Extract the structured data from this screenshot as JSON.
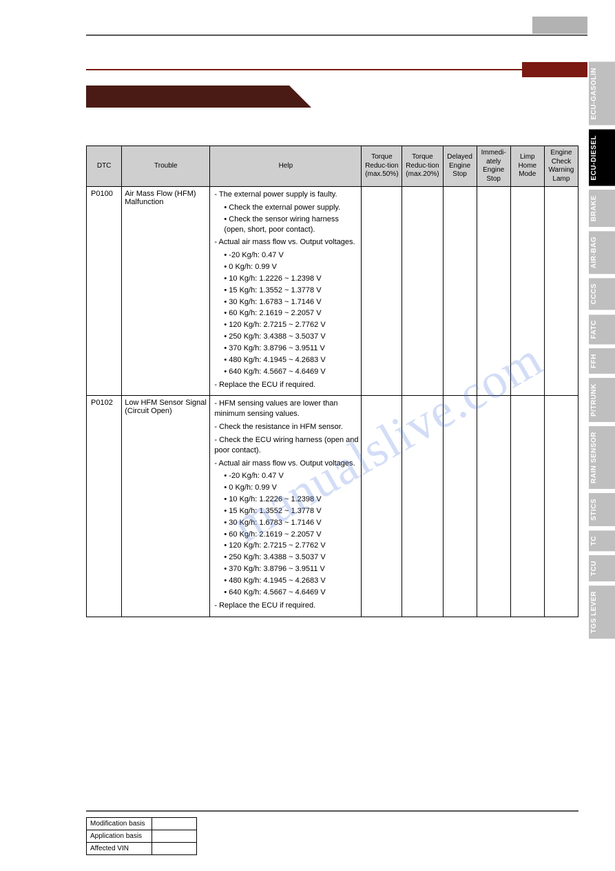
{
  "side_tabs": [
    {
      "label": "ECU-GASOLIN",
      "active": false
    },
    {
      "label": "ECU-DIESEL",
      "active": true
    },
    {
      "label": "BRAKE",
      "active": false
    },
    {
      "label": "AIR-BAG",
      "active": false
    },
    {
      "label": "CCCS",
      "active": false
    },
    {
      "label": "FATC",
      "active": false
    },
    {
      "label": "FFH",
      "active": false
    },
    {
      "label": "P/TRUNK",
      "active": false
    },
    {
      "label": "RAIN SENSOR",
      "active": false
    },
    {
      "label": "STICS",
      "active": false
    },
    {
      "label": "TC",
      "active": false
    },
    {
      "label": "TCU",
      "active": false
    },
    {
      "label": "TGS LEVER",
      "active": false
    }
  ],
  "table": {
    "columns": [
      "DTC",
      "Trouble",
      "Help",
      "Torque Reduc-tion (max.50%)",
      "Torque Reduc-tion (max.20%)",
      "Delayed Engine Stop",
      "Immedi-ately Engine Stop",
      "Limp Home Mode",
      "Engine Check Warning Lamp"
    ],
    "rows": [
      {
        "dtc": "P0100",
        "trouble": "Air Mass Flow (HFM) Malfunction",
        "help": [
          {
            "kind": "dash",
            "text": "The external power supply is faulty."
          },
          {
            "kind": "sub",
            "text": "Check the external power supply."
          },
          {
            "kind": "sub",
            "text": "Check the sensor wiring harness (open, short, poor contact)."
          },
          {
            "kind": "dash",
            "text": "Actual air mass flow vs. Output voltages."
          },
          {
            "kind": "sub",
            "text": "-20 Kg/h: 0.47 V"
          },
          {
            "kind": "sub",
            "text": "0 Kg/h: 0.99 V"
          },
          {
            "kind": "sub",
            "text": "10 Kg/h: 1.2226 ~ 1.2398 V"
          },
          {
            "kind": "sub",
            "text": "15 Kg/h: 1.3552 ~ 1.3778 V"
          },
          {
            "kind": "sub",
            "text": "30 Kg/h: 1.6783 ~ 1.7146 V"
          },
          {
            "kind": "sub",
            "text": "60 Kg/h: 2.1619 ~ 2.2057 V"
          },
          {
            "kind": "sub",
            "text": "120 Kg/h: 2.7215 ~ 2.7762 V"
          },
          {
            "kind": "sub",
            "text": "250 Kg/h: 3.4388 ~ 3.5037 V"
          },
          {
            "kind": "sub",
            "text": "370 Kg/h: 3.8796 ~ 3.9511 V"
          },
          {
            "kind": "sub",
            "text": "480 Kg/h: 4.1945 ~ 4.2683 V"
          },
          {
            "kind": "sub",
            "text": "640 Kg/h: 4.5667 ~ 4.6469 V"
          },
          {
            "kind": "dash",
            "text": "Replace the ECU if required."
          }
        ],
        "flags": [
          "",
          "",
          "",
          "",
          "",
          ""
        ]
      },
      {
        "dtc": "P0102",
        "trouble": "Low HFM Sensor Signal (Circuit Open)",
        "help": [
          {
            "kind": "dash",
            "text": "HFM sensing values are lower than minimum sensing values."
          },
          {
            "kind": "dash",
            "text": "Check the resistance in HFM sensor."
          },
          {
            "kind": "dash",
            "text": "Check the ECU wiring harness (open and poor contact)."
          },
          {
            "kind": "dash",
            "text": "Actual air mass flow vs. Output voltages."
          },
          {
            "kind": "sub",
            "text": "-20 Kg/h: 0.47 V"
          },
          {
            "kind": "sub",
            "text": "0 Kg/h: 0.99 V"
          },
          {
            "kind": "sub",
            "text": "10 Kg/h: 1.2226 ~ 1.2398 V"
          },
          {
            "kind": "sub",
            "text": "15 Kg/h: 1.3552 ~ 1.3778 V"
          },
          {
            "kind": "sub",
            "text": "30 Kg/h: 1.6783 ~ 1.7146 V"
          },
          {
            "kind": "sub",
            "text": "60 Kg/h: 2.1619 ~ 2.2057 V"
          },
          {
            "kind": "sub",
            "text": "120 Kg/h: 2.7215 ~ 2.7762 V"
          },
          {
            "kind": "sub",
            "text": "250 Kg/h: 3.4388 ~ 3.5037 V"
          },
          {
            "kind": "sub",
            "text": "370 Kg/h: 3.8796 ~ 3.9511 V"
          },
          {
            "kind": "sub",
            "text": "480 Kg/h: 4.1945 ~ 4.2683 V"
          },
          {
            "kind": "sub",
            "text": "640 Kg/h: 4.5667 ~ 4.6469 V"
          },
          {
            "kind": "dash",
            "text": "Replace the ECU if required."
          }
        ],
        "flags": [
          "",
          "",
          "",
          "",
          "",
          ""
        ]
      }
    ]
  },
  "footer": {
    "rows": [
      {
        "label": "Modification basis",
        "value": ""
      },
      {
        "label": "Application basis",
        "value": ""
      },
      {
        "label": "Affected VIN",
        "value": ""
      }
    ]
  },
  "watermark": "manualslive.com",
  "colors": {
    "accent": "#7a1a12",
    "banner": "#4a1b14",
    "grey_badge": "#b2b2b2",
    "tab_grey": "#bfbfbf",
    "tab_active": "#000000",
    "table_header_bg": "#cfcfcf",
    "rule": "#555555",
    "watermark": "rgba(80,120,220,0.25)"
  }
}
